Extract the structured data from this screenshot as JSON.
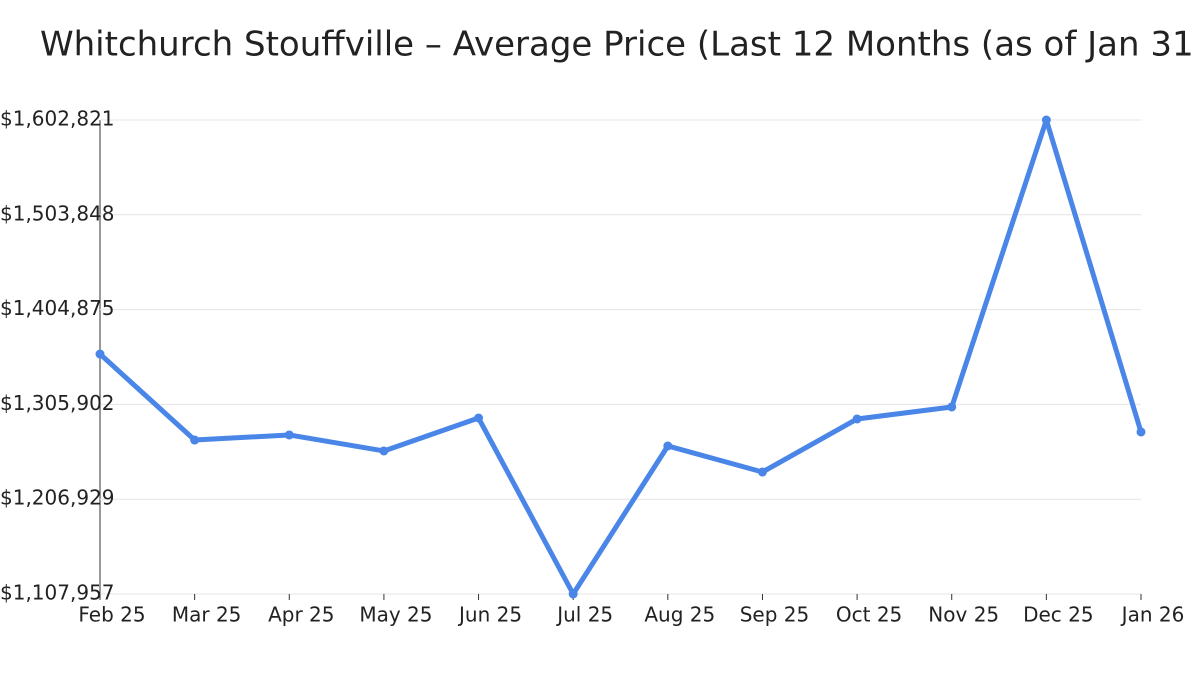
{
  "chart_data": {
    "type": "line",
    "title": "Whitchurch Stouffville – Average Price (Last 12 Months (as of Jan 31",
    "categories": [
      "Feb 25",
      "Mar 25",
      "Apr 25",
      "May 25",
      "Jun 25",
      "Jul 25",
      "Aug 25",
      "Sep 25",
      "Oct 25",
      "Nov 25",
      "Dec 25",
      "Jan 26"
    ],
    "series": [
      {
        "name": "Average Price",
        "color": "#4a86e8",
        "values": [
          1358500,
          1268700,
          1274000,
          1257300,
          1291700,
          1107957,
          1262500,
          1235300,
          1290700,
          1303200,
          1602821,
          1277100
        ]
      }
    ],
    "ylim": [
      1107957,
      1602821
    ],
    "yticks": [
      {
        "value": 1107957,
        "label": "$1,107,957"
      },
      {
        "value": 1206929,
        "label": "$1,206,929"
      },
      {
        "value": 1305902,
        "label": "$1,305,902"
      },
      {
        "value": 1404875,
        "label": "$1,404,875"
      },
      {
        "value": 1503848,
        "label": "$1,503,848"
      },
      {
        "value": 1602821,
        "label": "$1,602,821"
      }
    ],
    "grid": true
  }
}
